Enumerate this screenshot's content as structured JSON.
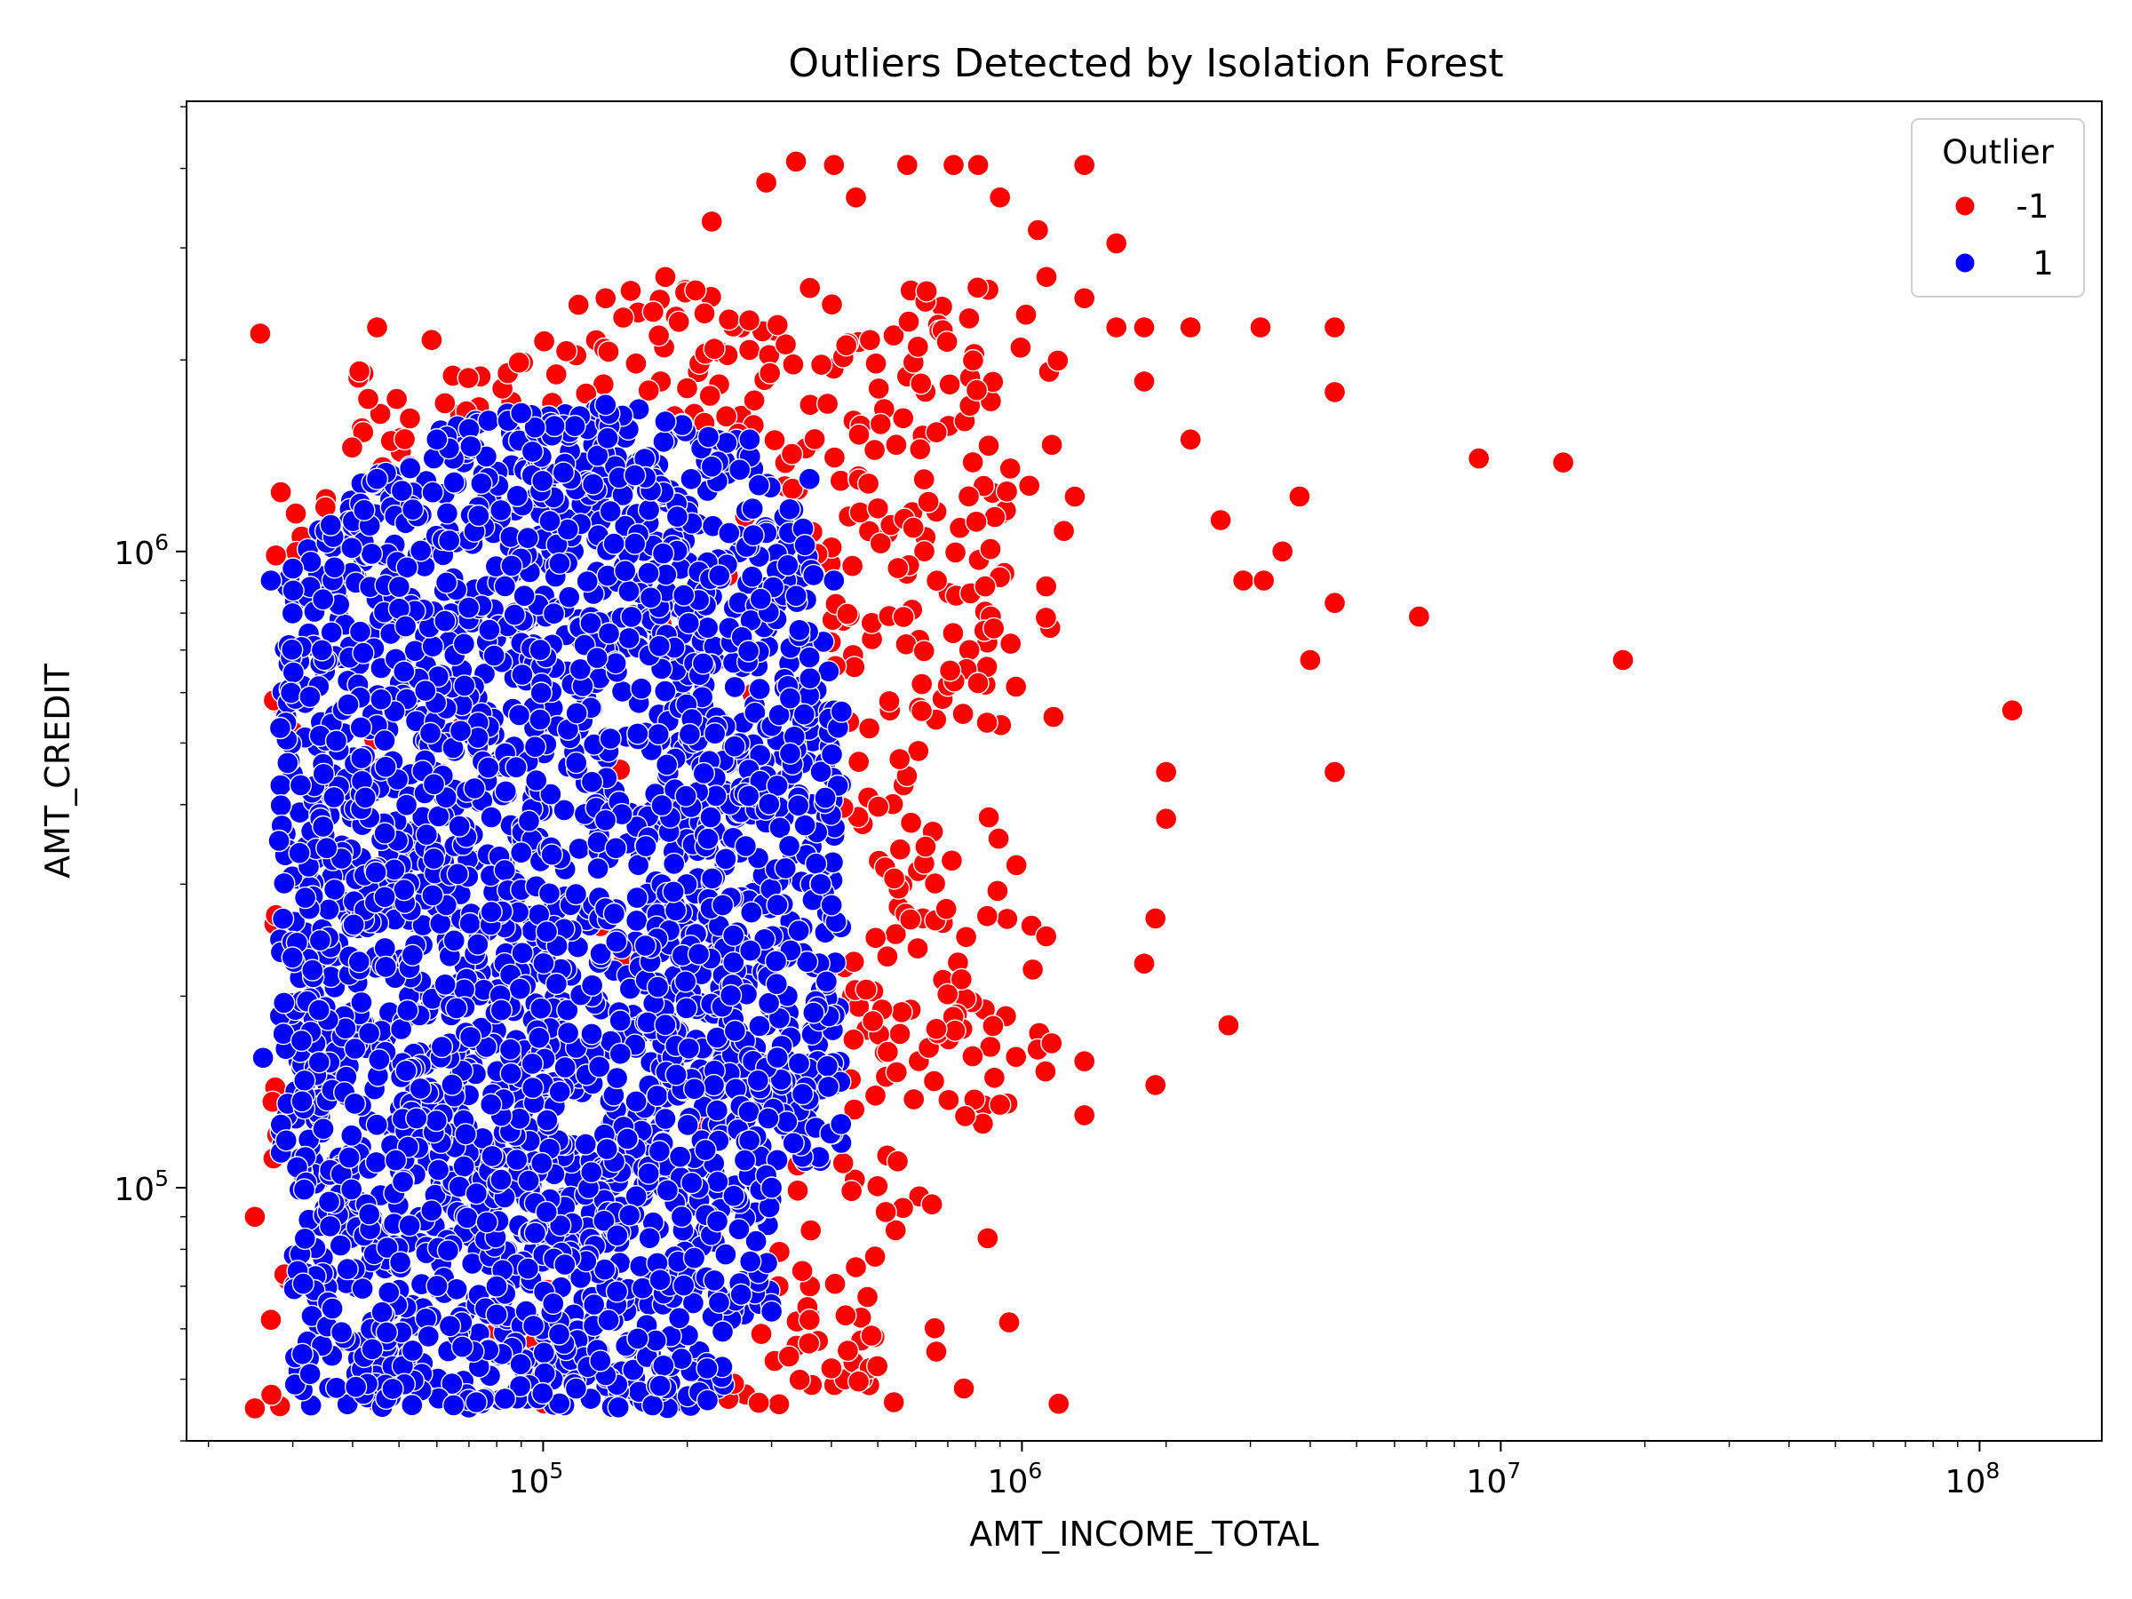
{
  "chart_data": {
    "type": "scatter",
    "title": "Outliers Detected by Isolation Forest",
    "xlabel": "AMT_INCOME_TOTAL",
    "ylabel": "AMT_CREDIT",
    "xscale": "log",
    "yscale": "log",
    "xlim": [
      18000,
      180000000
    ],
    "ylim": [
      40000,
      5100000
    ],
    "grid": false,
    "legend": {
      "title": "Outlier",
      "placement": "top-right",
      "entries": [
        {
          "label": "-1",
          "color": "#ff0000"
        },
        {
          "label": "1",
          "color": "#0000ff"
        }
      ]
    },
    "x_ticks": [
      {
        "base": "10",
        "exp": "5",
        "value": 100000
      },
      {
        "base": "10",
        "exp": "6",
        "value": 1000000
      },
      {
        "base": "10",
        "exp": "7",
        "value": 10000000
      },
      {
        "base": "10",
        "exp": "8",
        "value": 100000000
      }
    ],
    "y_ticks": [
      {
        "base": "10",
        "exp": "5",
        "value": 100000
      },
      {
        "base": "10",
        "exp": "6",
        "value": 1000000
      }
    ],
    "series": [
      {
        "name": "-1",
        "color": "#ff0000",
        "cloud": {
          "x_range": [
            27000,
            1300000
          ],
          "y_range": [
            45000,
            2600000
          ]
        },
        "points": [
          [
            25650,
            2200000
          ],
          [
            45000,
            2250000
          ],
          [
            58500,
            2150000
          ],
          [
            135000,
            2500000
          ],
          [
            180000,
            2700000
          ],
          [
            225000,
            3300000
          ],
          [
            292500,
            3800000
          ],
          [
            337500,
            4100000
          ],
          [
            405000,
            4050000
          ],
          [
            450000,
            3600000
          ],
          [
            576000,
            4050000
          ],
          [
            720000,
            4050000
          ],
          [
            810000,
            4050000
          ],
          [
            900000,
            3600000
          ],
          [
            1350000,
            4050000
          ],
          [
            1080000,
            3200000
          ],
          [
            1575000,
            3050000
          ],
          [
            1125000,
            2700000
          ],
          [
            1350000,
            2500000
          ],
          [
            1575000,
            2250000
          ],
          [
            1800000,
            2250000
          ],
          [
            2250000,
            2250000
          ],
          [
            3150000,
            2250000
          ],
          [
            4500000,
            2250000
          ],
          [
            1800000,
            1850000
          ],
          [
            4500000,
            1780000
          ],
          [
            2250000,
            1500000
          ],
          [
            9000000,
            1400000
          ],
          [
            13500000,
            1380000
          ],
          [
            3800000,
            1220000
          ],
          [
            2600000,
            1120000
          ],
          [
            3500000,
            1000000
          ],
          [
            2900000,
            900000
          ],
          [
            3200000,
            900000
          ],
          [
            4500000,
            830000
          ],
          [
            6750000,
            790000
          ],
          [
            4000000,
            675000
          ],
          [
            18000000,
            675000
          ],
          [
            117000000,
            562500
          ],
          [
            4500000,
            450000
          ],
          [
            2000000,
            450000
          ],
          [
            2000000,
            380000
          ],
          [
            1900000,
            265000
          ],
          [
            1800000,
            225000
          ],
          [
            2700000,
            180000
          ],
          [
            1350000,
            158000
          ],
          [
            1900000,
            145000
          ],
          [
            900000,
            135000
          ],
          [
            1350000,
            130000
          ],
          [
            550000,
            110000
          ],
          [
            450000,
            75000
          ],
          [
            400000,
            52000
          ],
          [
            540000,
            46000
          ],
          [
            360000,
            62000
          ],
          [
            310000,
            70000
          ],
          [
            25000,
            45000
          ],
          [
            25000,
            90000
          ],
          [
            27000,
            62000
          ],
          [
            45000,
            46000
          ]
        ]
      },
      {
        "name": "1",
        "color": "#0000ff",
        "cloud": {
          "x_range": [
            28000,
            420000
          ],
          "y_range": [
            45000,
            1700000
          ]
        },
        "points": [
          [
            26000,
            160000
          ],
          [
            27000,
            900000
          ],
          [
            30000,
            940000
          ],
          [
            36000,
            1100000
          ],
          [
            45000,
            1300000
          ],
          [
            60000,
            1500000
          ],
          [
            90000,
            1650000
          ],
          [
            135000,
            1700000
          ],
          [
            180000,
            1600000
          ],
          [
            270000,
            1500000
          ],
          [
            360000,
            1300000
          ],
          [
            405000,
            900000
          ],
          [
            420000,
            560000
          ],
          [
            380000,
            300000
          ],
          [
            300000,
            100000
          ],
          [
            220000,
            52000
          ]
        ]
      }
    ]
  }
}
